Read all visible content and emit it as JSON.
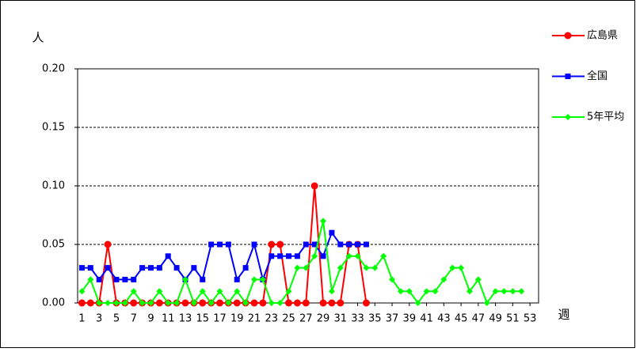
{
  "chart_data": {
    "type": "line",
    "y_label": "人",
    "x_label": "週",
    "x": [
      1,
      2,
      3,
      4,
      5,
      6,
      7,
      8,
      9,
      10,
      11,
      12,
      13,
      14,
      15,
      16,
      17,
      18,
      19,
      20,
      21,
      22,
      23,
      24,
      25,
      26,
      27,
      28,
      29,
      30,
      31,
      32,
      33,
      34,
      35,
      36,
      37,
      38,
      39,
      40,
      41,
      42,
      43,
      44,
      45,
      46,
      47,
      48,
      49,
      50,
      51,
      52,
      53
    ],
    "xlim": [
      0.5,
      54
    ],
    "xticks": [
      1,
      3,
      5,
      7,
      9,
      11,
      13,
      15,
      17,
      19,
      21,
      23,
      25,
      27,
      29,
      31,
      33,
      35,
      37,
      39,
      41,
      43,
      45,
      47,
      49,
      51,
      53
    ],
    "ylim": [
      0,
      0.2
    ],
    "yticks": [
      {
        "value": 0,
        "label": "0.00"
      },
      {
        "value": 0.05,
        "label": "0.05"
      },
      {
        "value": 0.1,
        "label": "0.10"
      },
      {
        "value": 0.15,
        "label": "0.15"
      },
      {
        "value": 0.2,
        "label": "0.20"
      }
    ],
    "grid": true,
    "legend": "right",
    "series": [
      {
        "name": "広島県",
        "color": "#ff0000",
        "marker": "circle",
        "values": [
          0,
          0,
          0,
          0.05,
          0,
          0,
          0,
          0,
          0,
          0,
          0,
          0,
          0,
          0,
          0,
          0,
          0,
          0,
          0,
          0,
          0,
          0,
          0.05,
          0.05,
          0,
          0,
          0,
          0.1,
          0,
          0,
          0,
          0.05,
          0.05,
          0,
          null,
          null,
          null,
          null,
          null,
          null,
          null,
          null,
          null,
          null,
          null,
          null,
          null,
          null,
          null,
          null,
          null,
          null,
          null
        ]
      },
      {
        "name": "全国",
        "color": "#0000ff",
        "marker": "square",
        "values": [
          0.03,
          0.03,
          0.02,
          0.03,
          0.02,
          0.02,
          0.02,
          0.03,
          0.03,
          0.03,
          0.04,
          0.03,
          0.02,
          0.03,
          0.02,
          0.05,
          0.05,
          0.05,
          0.02,
          0.03,
          0.05,
          0.02,
          0.04,
          0.04,
          0.04,
          0.04,
          0.05,
          0.05,
          0.04,
          0.06,
          0.05,
          0.05,
          0.05,
          0.05,
          null,
          null,
          null,
          null,
          null,
          null,
          null,
          null,
          null,
          null,
          null,
          null,
          null,
          null,
          null,
          null,
          null,
          null,
          null
        ]
      },
      {
        "name": "5年平均",
        "color": "#00ff00",
        "marker": "diamond",
        "values": [
          0.01,
          0.02,
          0,
          0,
          0,
          0,
          0.01,
          0,
          0,
          0.01,
          0,
          0,
          0.02,
          0,
          0.01,
          0,
          0.01,
          0,
          0.01,
          0,
          0.02,
          0.02,
          0,
          0,
          0.01,
          0.03,
          0.03,
          0.04,
          0.07,
          0.01,
          0.03,
          0.04,
          0.04,
          0.03,
          0.03,
          0.04,
          0.02,
          0.01,
          0.01,
          0,
          0.01,
          0.01,
          0.02,
          0.03,
          0.03,
          0.01,
          0.02,
          0,
          0.01,
          0.01,
          0.01,
          0.01,
          null
        ]
      }
    ]
  }
}
